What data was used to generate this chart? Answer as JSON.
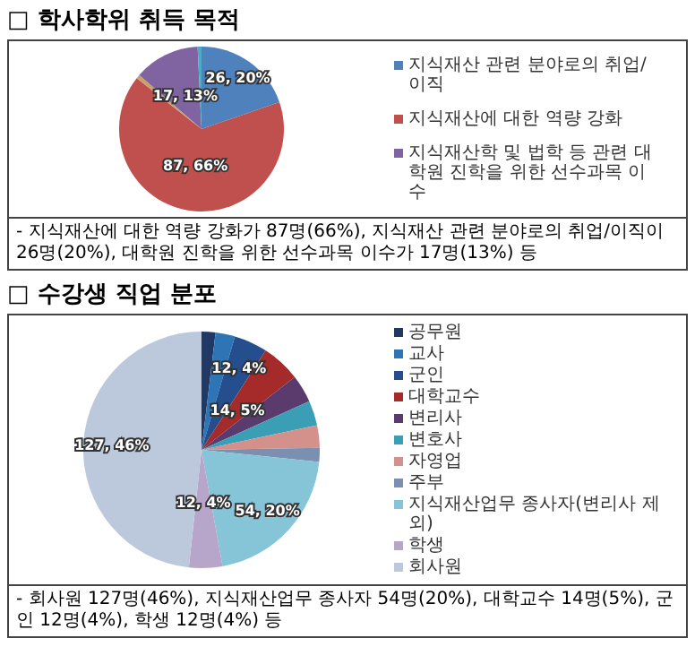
{
  "chart_data": [
    {
      "type": "pie",
      "title": "□ 학사학위 취득 목적",
      "categories": [
        "지식재산 관련 분야로의 취업/이직",
        "지식재산에 대한 역량 강화",
        null,
        "지식재산학 및 법학 등 관련 대학원 진학을 위한 선수과목 이수",
        null
      ],
      "values": [
        26,
        87,
        1,
        17,
        1
      ],
      "colors": [
        "#4f81bd",
        "#c0504d",
        "#c9a26b",
        "#8064a2",
        "#4bacc6"
      ],
      "value_labels": [
        "26, 20%",
        "87, 66%",
        null,
        "17, 13%",
        null
      ],
      "legend": "right",
      "annotations": [
        "- 지식재산에 대한 역량 강화가 87명(66%), 지식재산 관련 분야로의 취업/이직이 26명(20%), 대학원 진학을 위한 선수과목 이수가 17명(13%) 등"
      ]
    },
    {
      "type": "pie",
      "title": "□ 수강생 직업 분포",
      "categories": [
        "공무원",
        "교사",
        "군인",
        "대학교수",
        "변리사",
        "변호사",
        "자영업",
        "주부",
        "지식재산업무 종사자(변리사 제외)",
        "학생",
        "회사원"
      ],
      "values": [
        5,
        7,
        12,
        14,
        10,
        9,
        8,
        5,
        54,
        12,
        127
      ],
      "colors": [
        "#1f3864",
        "#2e75b6",
        "#254e8f",
        "#a52a2a",
        "#5b3a6e",
        "#3a9fb5",
        "#d4908a",
        "#7b8fb0",
        "#86c5d8",
        "#b7a6c9",
        "#bcc8dc"
      ],
      "value_labels": [
        null,
        null,
        "12, 4%",
        "14, 5%",
        null,
        null,
        null,
        null,
        "54, 20%",
        "12, 4%",
        "127, 46%"
      ],
      "legend": "right",
      "annotations": [
        "- 회사원 127명(46%), 지식재산업무 종사자 54명(20%), 대학교수 14명(5%), 군인 12명(4%), 학생 12명(4%) 등"
      ]
    }
  ]
}
